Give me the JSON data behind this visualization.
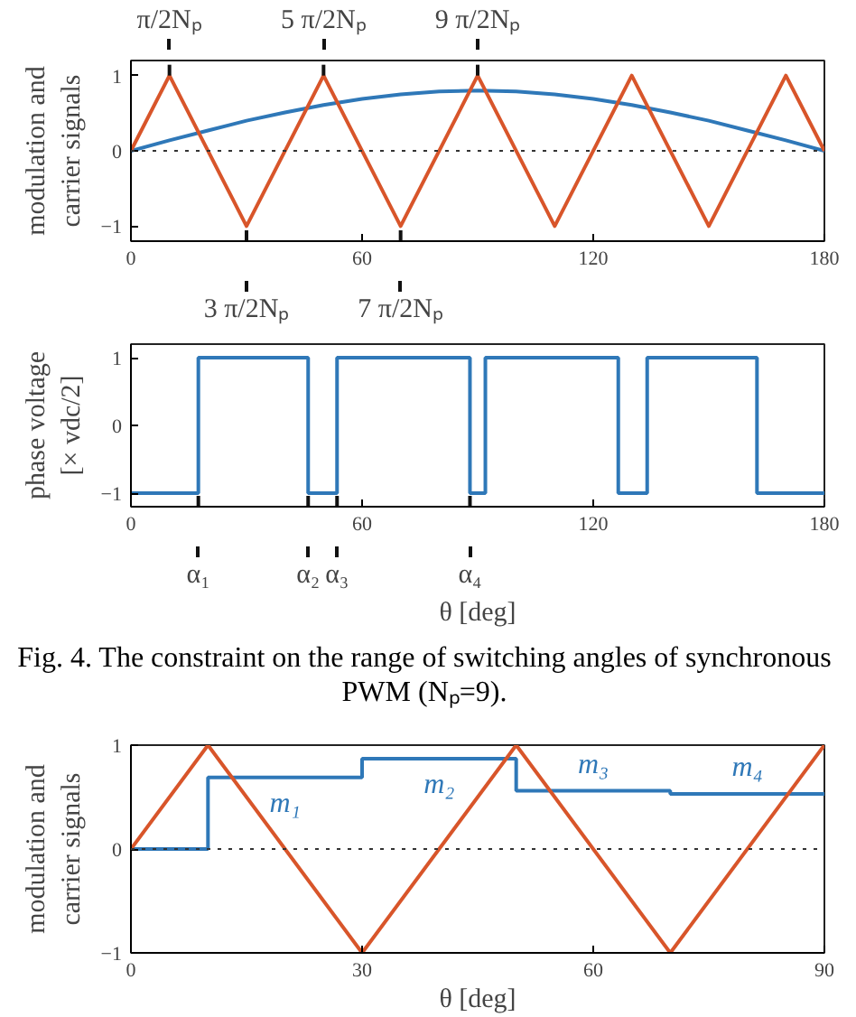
{
  "chart_data": [
    {
      "type": "line",
      "ylabel": "modulation and\ncarrier signals",
      "xlim": [
        0,
        180
      ],
      "xticks": [
        0,
        60,
        120,
        180
      ],
      "ylim": [
        -1.2,
        1.2
      ],
      "yticks": [
        -1,
        0,
        1
      ],
      "grid": false,
      "x": [
        0,
        10,
        20,
        30,
        40,
        50,
        60,
        70,
        80,
        90,
        100,
        110,
        120,
        130,
        140,
        150,
        160,
        170,
        180
      ],
      "series": [
        {
          "color": "#2f78b8",
          "values": [
            0,
            0.14,
            0.27,
            0.4,
            0.51,
            0.61,
            0.69,
            0.75,
            0.79,
            0.8,
            0.79,
            0.75,
            0.69,
            0.61,
            0.51,
            0.4,
            0.27,
            0.14,
            0
          ]
        },
        {
          "color": "#d8552a",
          "x": [
            0,
            10,
            30,
            50,
            70,
            90,
            110,
            130,
            150,
            170,
            180
          ],
          "values": [
            0,
            1,
            -1,
            1,
            -1,
            1,
            -1,
            1,
            -1,
            1,
            0
          ]
        }
      ],
      "ref_lines": [
        {
          "axis": "y",
          "value": 0,
          "line_style": "dotted",
          "color": "#333333"
        }
      ],
      "annotations": [
        {
          "text": "π/2Nₚ",
          "x": 10,
          "y": 1
        },
        {
          "text": "5 π/2Nₚ",
          "x": 50,
          "y": 1
        },
        {
          "text": "9 π/2Nₚ",
          "x": 90,
          "y": 1
        },
        {
          "text": "3 π/2Nₚ",
          "x": 30,
          "y": -1
        },
        {
          "text": "7 π/2Nₚ",
          "x": 70,
          "y": -1
        }
      ]
    },
    {
      "type": "step",
      "ylabel": "phase voltage\n[× vdc/2]",
      "xlabel": "θ [deg]",
      "xlim": [
        0,
        180
      ],
      "xticks": [
        0,
        60,
        120,
        180
      ],
      "ylim": [
        -1.2,
        1.2
      ],
      "yticks": [
        -1,
        0,
        1
      ],
      "grid": false,
      "series": [
        {
          "color": "#2f78b8",
          "x": [
            0,
            17.5,
            46,
            53.5,
            88,
            92,
            126.5,
            134,
            162.5,
            180
          ],
          "values": [
            -1,
            1,
            -1,
            1,
            -1,
            1,
            -1,
            1,
            -1,
            -1
          ]
        }
      ],
      "annotations": [
        {
          "text": "α₁",
          "x": 17.5,
          "y": -1
        },
        {
          "text": "α₂",
          "x": 46,
          "y": -1
        },
        {
          "text": "α₃",
          "x": 53.5,
          "y": -1
        },
        {
          "text": "α₄",
          "x": 88,
          "y": -1
        },
        "Fig. 4.  The constraint on the range of switching angles of synchronous PWM (Nₚ=9)."
      ]
    },
    {
      "type": "line",
      "ylabel": "modulation and\ncarrier signals",
      "xlabel": "θ [deg]",
      "xlim": [
        0,
        90
      ],
      "xticks": [
        0,
        30,
        60,
        90
      ],
      "ylim": [
        -1,
        1
      ],
      "yticks": [
        -1,
        0,
        1
      ],
      "grid": false,
      "series": [
        {
          "type": "step",
          "color": "#2f78b8",
          "x": [
            0,
            10,
            30,
            50,
            70,
            90
          ],
          "values": [
            0,
            0.69,
            0.87,
            0.56,
            0.53,
            0.53
          ]
        },
        {
          "color": "#d8552a",
          "x": [
            0,
            10,
            30,
            50,
            70,
            90
          ],
          "values": [
            0,
            1,
            -1,
            1,
            -1,
            1
          ]
        }
      ],
      "ref_lines": [
        {
          "axis": "y",
          "value": 0,
          "line_style": "dotted",
          "color": "#333333"
        }
      ],
      "annotations": [
        {
          "text": "m₁",
          "x": 20,
          "y": 0.69
        },
        {
          "text": "m₂",
          "x": 40,
          "y": 0.87
        },
        {
          "text": "m₃",
          "x": 60,
          "y": 0.56
        },
        {
          "text": "m₄",
          "x": 80,
          "y": 0.53
        }
      ]
    }
  ]
}
